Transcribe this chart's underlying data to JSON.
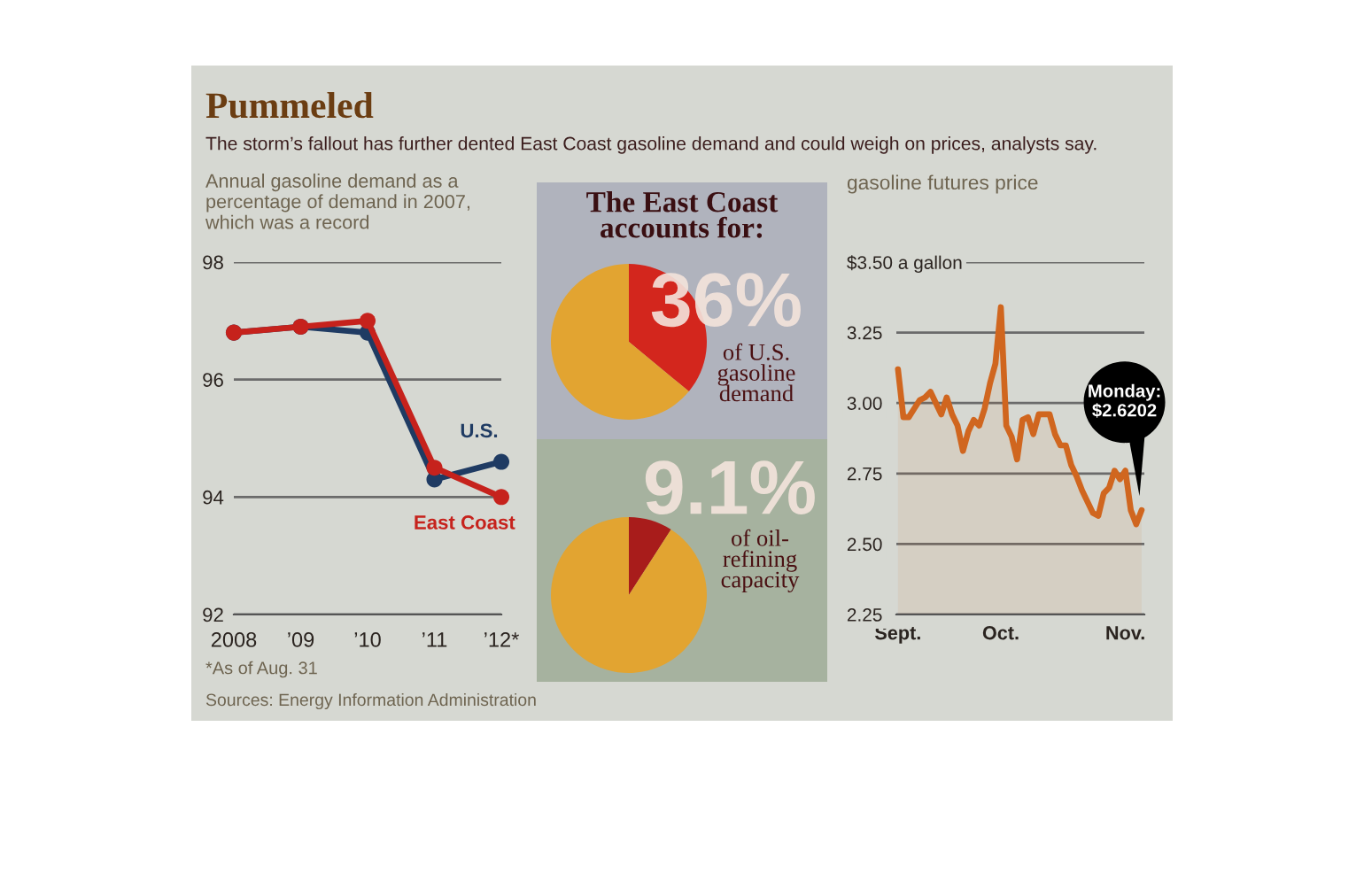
{
  "chart_data": [
    {
      "type": "line",
      "title": "Pummeled",
      "subtitle": "The storm’s fallout has further dented East Coast gasoline demand and could weigh on prices, analysts say.",
      "ylabel": "Annual gasoline demand as a\npercentage of demand in 2007,\nwhich was a record",
      "categories": [
        "2008",
        "’09",
        "’10",
        "’11",
        "’12*"
      ],
      "series": [
        {
          "name": "U.S.",
          "color": "#1f3b63",
          "values": [
            96.8,
            96.9,
            96.8,
            94.3,
            94.6
          ]
        },
        {
          "name": "East Coast",
          "color": "#c6221c",
          "values": [
            96.8,
            96.9,
            97.0,
            94.5,
            94.0
          ]
        }
      ],
      "ylim": [
        92,
        98
      ],
      "yticks": [
        92,
        94,
        96,
        98
      ],
      "grid": "y",
      "marker": "circle",
      "line_style": "solid",
      "annotations": [
        "*As of Aug. 31",
        "Sources: Energy Information Administration"
      ]
    },
    {
      "type": "pie",
      "title": "The East Coast\naccounts for:",
      "categories": [
        "of U.S.\ngasoline\ndemand",
        null
      ],
      "values": [
        36,
        64
      ],
      "colors": [
        "#d3261d",
        "#e2a431"
      ],
      "value_labels": [
        "36%",
        null
      ]
    },
    {
      "type": "pie",
      "categories": [
        "of oil-\nrefining\ncapacity",
        null
      ],
      "values": [
        9.1,
        90.9
      ],
      "colors": [
        "#a81c1b",
        "#e2a431"
      ],
      "value_labels": [
        "9.1%",
        null
      ]
    },
    {
      "type": "area",
      "title": "gasoline futures price",
      "categories": [
        "Sept.",
        null,
        null,
        null,
        null,
        null,
        null,
        null,
        null,
        null,
        null,
        null,
        null,
        null,
        null,
        null,
        null,
        null,
        null,
        "Oct.",
        null,
        null,
        null,
        null,
        null,
        null,
        null,
        null,
        null,
        null,
        null,
        null,
        null,
        null,
        null,
        null,
        null,
        null,
        null,
        null,
        null,
        null,
        "Nov.",
        null,
        null,
        null
      ],
      "series": [
        {
          "color": "#d0661f",
          "values": [
            3.12,
            2.95,
            2.95,
            2.98,
            3.01,
            3.02,
            3.04,
            3.0,
            2.96,
            3.02,
            2.96,
            2.92,
            2.83,
            2.9,
            2.94,
            2.92,
            2.98,
            3.07,
            3.14,
            3.34,
            2.92,
            2.88,
            2.8,
            2.94,
            2.95,
            2.89,
            2.96,
            2.96,
            2.96,
            2.89,
            2.85,
            2.85,
            2.78,
            2.74,
            2.69,
            2.65,
            2.61,
            2.6,
            2.68,
            2.7,
            2.76,
            2.73,
            2.76,
            2.62,
            2.57,
            2.6202
          ]
        }
      ],
      "ylim": [
        2.25,
        3.5
      ],
      "yticks": [
        2.25,
        {
          "value": 2.5,
          "label": "2.50"
        },
        2.75,
        {
          "value": 3,
          "label": "3.00"
        },
        3.25,
        {
          "value": 3.5,
          "label": "$3.50 a gallon"
        }
      ],
      "grid": "y",
      "line_style": "solid",
      "annotations": [
        "Monday:\n$2.6202"
      ]
    }
  ]
}
